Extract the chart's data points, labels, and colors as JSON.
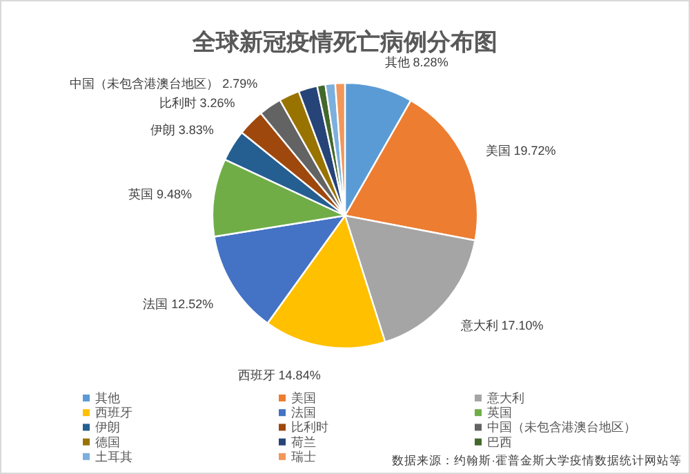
{
  "chart_data": {
    "type": "pie",
    "title": "全球新冠疫情死亡病例分布图",
    "categories": [
      "其他",
      "美国",
      "意大利",
      "西班牙",
      "法国",
      "英国",
      "伊朗",
      "比利时",
      "中国（未包含港澳台地区）",
      "德国",
      "荷兰",
      "巴西",
      "土耳其",
      "瑞士"
    ],
    "values": [
      8.28,
      19.72,
      17.1,
      14.84,
      12.52,
      9.48,
      3.83,
      3.26,
      2.79,
      2.5,
      2.3,
      1.0,
      1.2,
      1.18
    ],
    "colors": [
      "#5b9bd5",
      "#ed7d31",
      "#a5a5a5",
      "#ffc000",
      "#4472c4",
      "#70ad47",
      "#255e91",
      "#9e480e",
      "#636363",
      "#997300",
      "#264478",
      "#43682b",
      "#7cafdd",
      "#f1975a"
    ],
    "value_labels": [
      "其他 8.28%",
      "美国 19.72%",
      "意大利 17.10%",
      "西班牙 14.84%",
      "法国 12.52%",
      "英国 9.48%",
      "伊朗 3.83%",
      "比利时 3.26%",
      "中国（未包含港澳台地区） 2.79%",
      null,
      null,
      null,
      null,
      null
    ],
    "legend": "bottom",
    "annotations": [
      "数据来源：约翰斯·霍普金斯大学疫情数据统计网站等"
    ]
  }
}
